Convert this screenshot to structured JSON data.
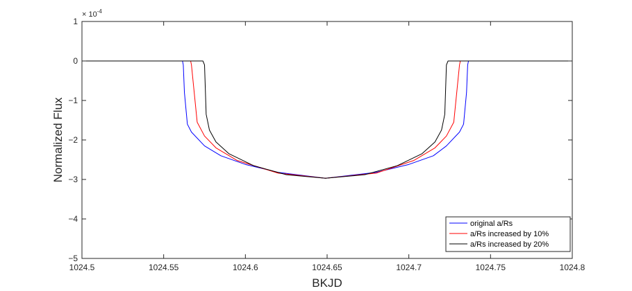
{
  "chart_data": {
    "type": "line",
    "xlabel": "BKJD",
    "ylabel": "Normalized Flux",
    "y_multiplier_base": "× 10",
    "y_multiplier_exp": "-4",
    "xlim": [
      1024.5,
      1024.8
    ],
    "ylim": [
      -5,
      1
    ],
    "x_ticks": [
      1024.5,
      1024.55,
      1024.6,
      1024.65,
      1024.7,
      1024.75,
      1024.8
    ],
    "x_tick_labels": [
      "1024.5",
      "1024.55",
      "1024.6",
      "1024.65",
      "1024.7",
      "1024.75",
      "1024.8"
    ],
    "y_ticks": [
      1,
      0,
      -1,
      -2,
      -3,
      -4,
      -5
    ],
    "y_tick_labels": [
      "1",
      "0",
      "−1",
      "−2",
      "−3",
      "−4",
      "−5"
    ],
    "grid": false,
    "legend_position": "bottom-right",
    "series": [
      {
        "name": "original a/Rs",
        "color": "#0000ff",
        "x": [
          1024.5,
          1024.5615,
          1024.562,
          1024.5627,
          1024.5645,
          1024.567,
          1024.575,
          1024.585,
          1024.6,
          1024.62,
          1024.649,
          1024.68,
          1024.7,
          1024.715,
          1024.723,
          1024.731,
          1024.7335,
          1024.7353,
          1024.736,
          1024.7365,
          1024.8
        ],
        "y": [
          0,
          0,
          -0.1,
          -0.8,
          -1.6,
          -1.8,
          -2.15,
          -2.4,
          -2.62,
          -2.82,
          -2.97,
          -2.82,
          -2.62,
          -2.4,
          -2.15,
          -1.8,
          -1.6,
          -0.8,
          -0.1,
          0,
          0
        ]
      },
      {
        "name": "a/Rs increased by 10%",
        "color": "#ff0000",
        "x": [
          1024.5,
          1024.5665,
          1024.567,
          1024.5705,
          1024.575,
          1024.582,
          1024.595,
          1024.62,
          1024.649,
          1024.68,
          1024.703,
          1024.716,
          1024.723,
          1024.7275,
          1024.731,
          1024.7315,
          1024.8
        ],
        "y": [
          0,
          0,
          -0.1,
          -1.55,
          -1.9,
          -2.2,
          -2.52,
          -2.84,
          -2.97,
          -2.84,
          -2.52,
          -2.2,
          -1.9,
          -1.55,
          -0.1,
          0,
          0
        ]
      },
      {
        "name": "a/Rs increased by 20%",
        "color": "#000000",
        "x": [
          1024.5,
          1024.574,
          1024.575,
          1024.576,
          1024.578,
          1024.582,
          1024.59,
          1024.605,
          1024.625,
          1024.649,
          1024.673,
          1024.693,
          1024.708,
          1024.716,
          1024.72,
          1024.722,
          1024.723,
          1024.724,
          1024.8
        ],
        "y": [
          0,
          0,
          -0.1,
          -1.35,
          -1.75,
          -2.05,
          -2.35,
          -2.65,
          -2.88,
          -2.97,
          -2.88,
          -2.65,
          -2.35,
          -2.05,
          -1.75,
          -1.35,
          -0.1,
          0,
          0
        ]
      }
    ]
  }
}
